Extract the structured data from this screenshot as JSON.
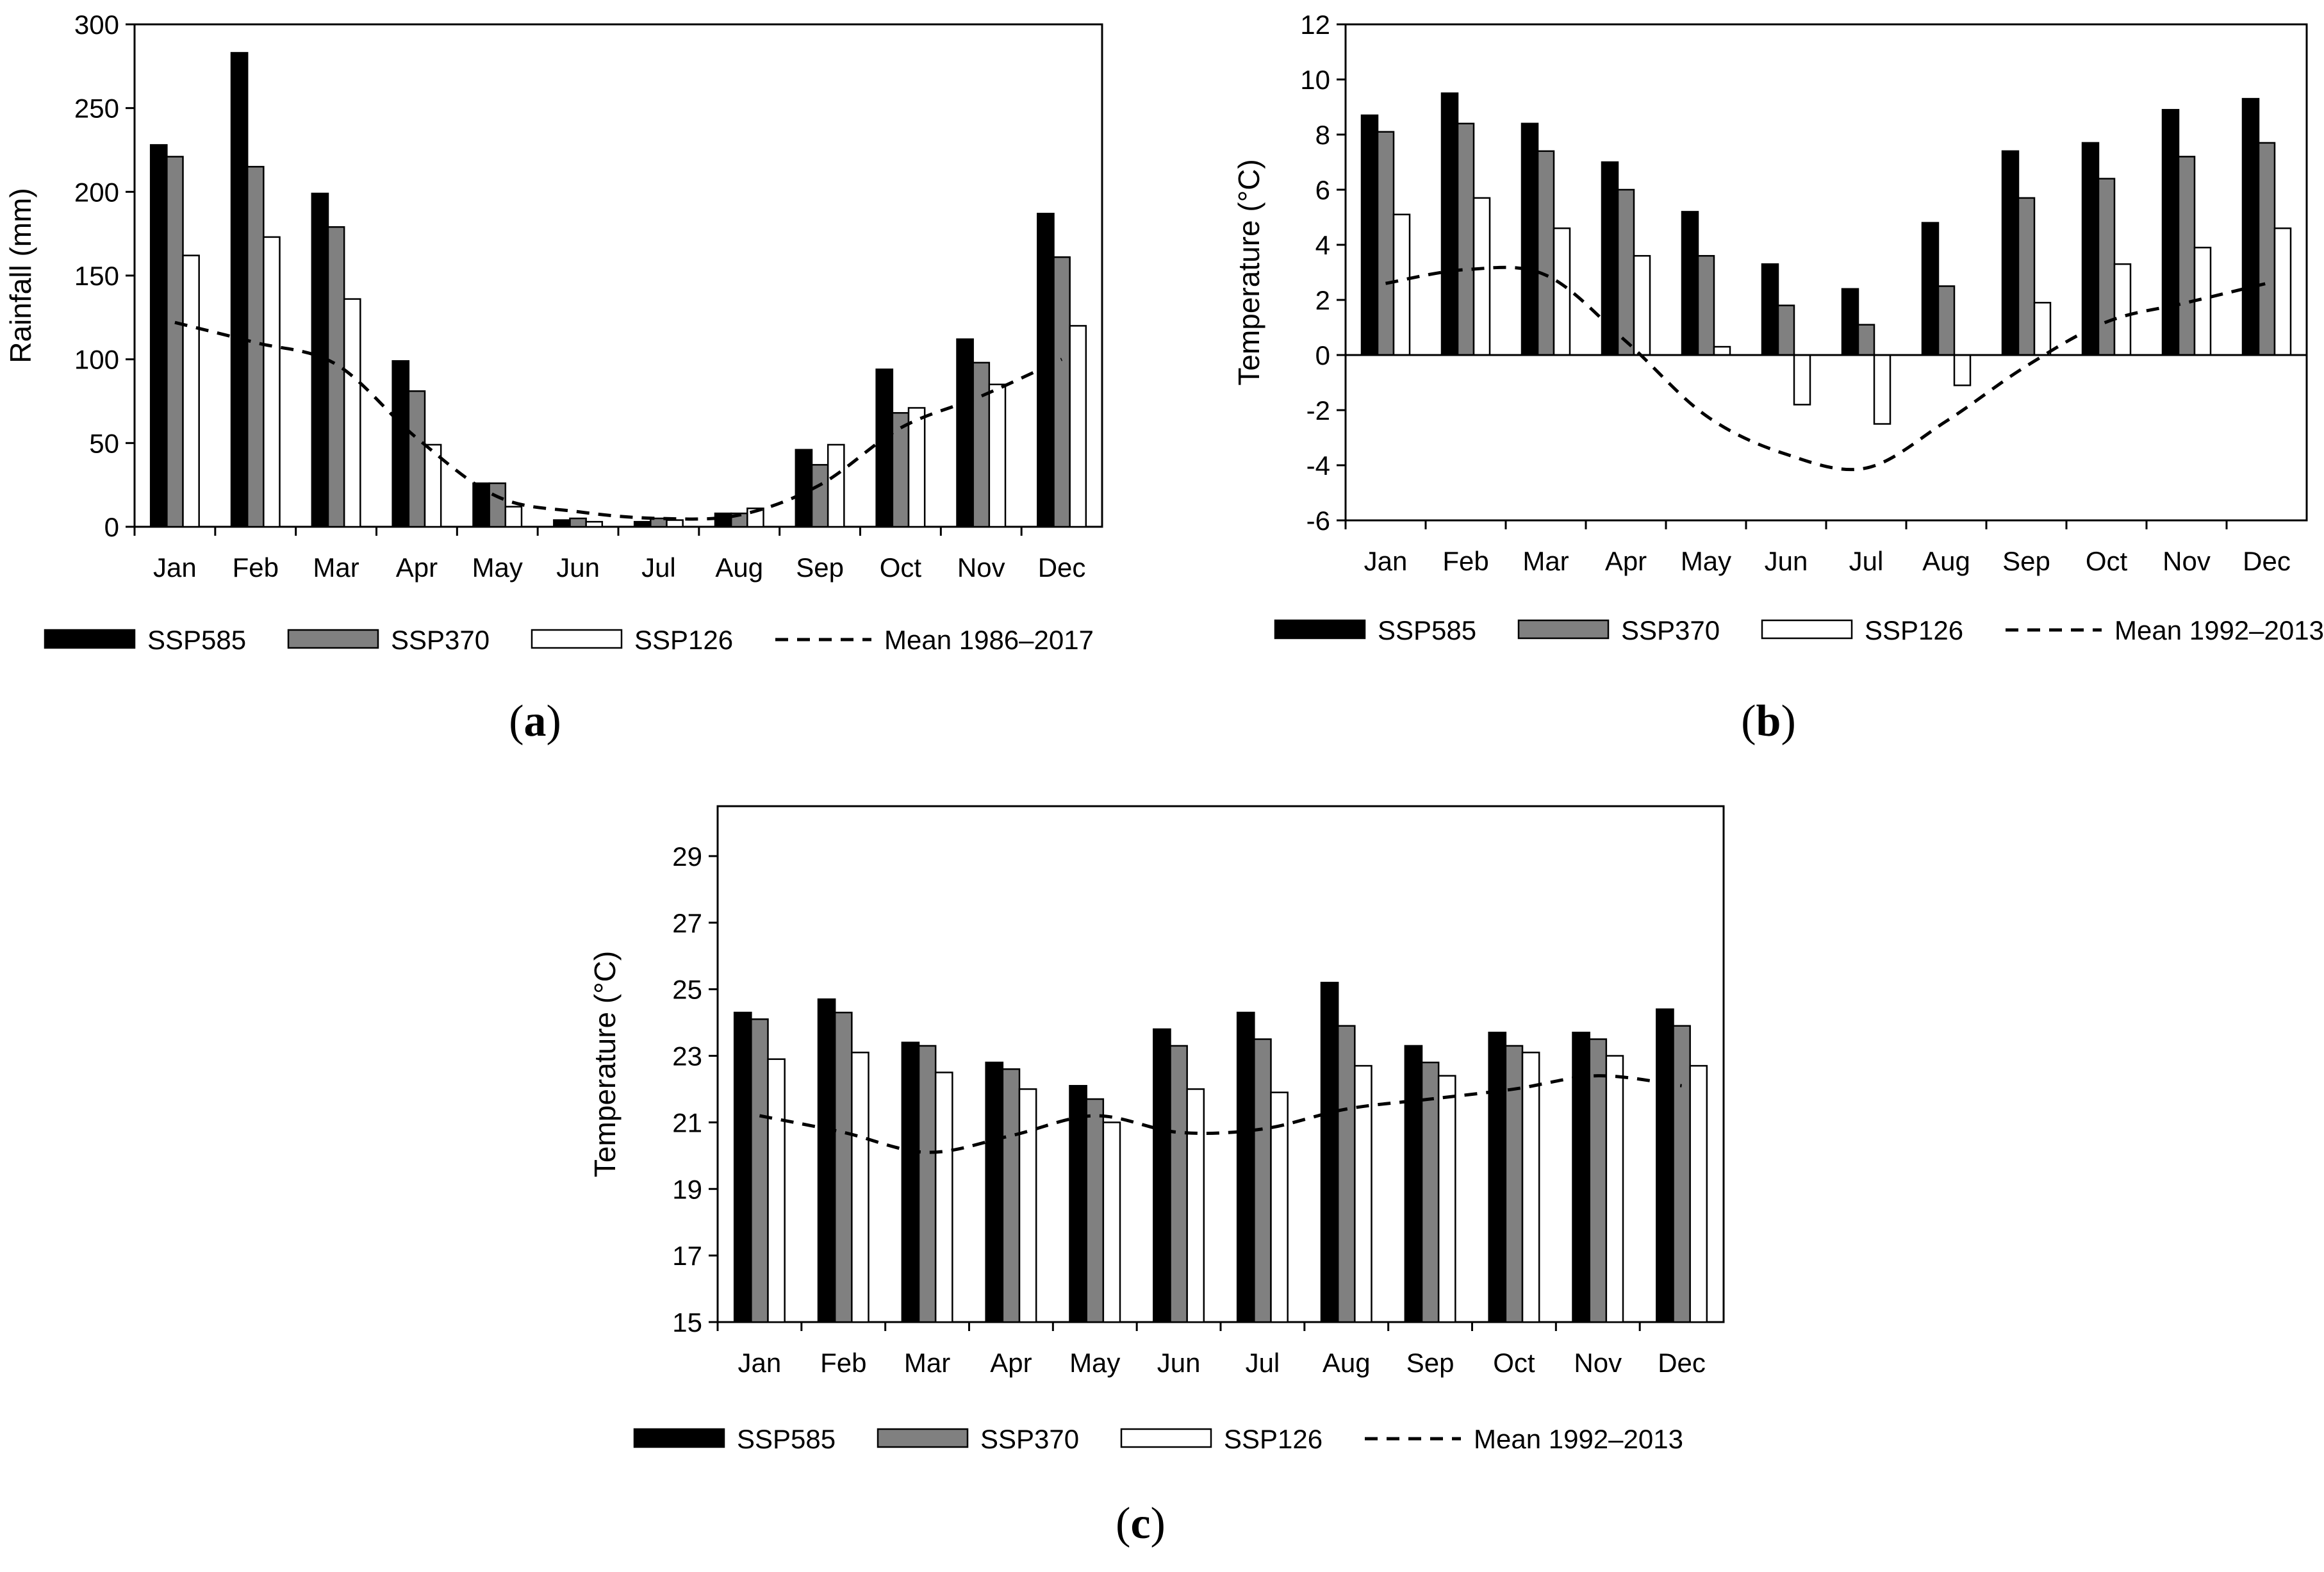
{
  "chart_data": [
    {
      "type": "bar",
      "panel": "a",
      "panel_label": "a",
      "ylabel": "Rainfall (mm)",
      "xlabel": "",
      "ylim": [
        0,
        300
      ],
      "yticks": [
        0,
        50,
        100,
        150,
        200,
        250,
        300
      ],
      "categories": [
        "Jan",
        "Feb",
        "Mar",
        "Apr",
        "May",
        "Jun",
        "Jul",
        "Aug",
        "Sep",
        "Oct",
        "Nov",
        "Dec"
      ],
      "series": [
        {
          "name": "SSP585",
          "kind": "bar",
          "color": "#000000",
          "values": [
            228,
            283,
            199,
            99,
            26,
            4,
            3,
            8,
            46,
            94,
            112,
            187
          ]
        },
        {
          "name": "SSP370",
          "kind": "bar",
          "color": "#808080",
          "values": [
            221,
            215,
            179,
            81,
            26,
            5,
            5,
            8,
            37,
            68,
            98,
            161
          ]
        },
        {
          "name": "SSP126",
          "kind": "bar",
          "color": "#ffffff",
          "values": [
            162,
            173,
            136,
            49,
            12,
            3,
            4,
            11,
            49,
            71,
            85,
            120
          ]
        },
        {
          "name": "Mean 1986–2017",
          "kind": "line",
          "dash": true,
          "values": [
            122,
            110,
            97,
            53,
            18,
            9,
            5,
            7,
            25,
            59,
            78,
            100
          ]
        }
      ],
      "legend": [
        "SSP585",
        "SSP370",
        "SSP126",
        "Mean 1986–2017"
      ]
    },
    {
      "type": "bar",
      "panel": "b",
      "panel_label": "b",
      "ylabel": "Temperature (°C)",
      "xlabel": "",
      "ylim": [
        -6,
        12
      ],
      "yticks": [
        -6,
        -4,
        -2,
        0,
        2,
        4,
        6,
        8,
        10,
        12
      ],
      "categories": [
        "Jan",
        "Feb",
        "Mar",
        "Apr",
        "May",
        "Jun",
        "Jul",
        "Aug",
        "Sep",
        "Oct",
        "Nov",
        "Dec"
      ],
      "series": [
        {
          "name": "SSP585",
          "kind": "bar",
          "color": "#000000",
          "values": [
            8.7,
            9.5,
            8.4,
            7.0,
            5.2,
            3.3,
            2.4,
            4.8,
            7.4,
            7.7,
            8.9,
            9.3
          ]
        },
        {
          "name": "SSP370",
          "kind": "bar",
          "color": "#808080",
          "values": [
            8.1,
            8.4,
            7.4,
            6.0,
            3.6,
            1.8,
            1.1,
            2.5,
            5.7,
            6.4,
            7.2,
            7.7
          ]
        },
        {
          "name": "SSP126",
          "kind": "bar",
          "color": "#ffffff",
          "values": [
            5.1,
            5.7,
            4.6,
            3.6,
            0.3,
            -1.8,
            -2.5,
            -1.1,
            1.9,
            3.3,
            3.9,
            4.6
          ]
        },
        {
          "name": "Mean 1992–2013",
          "kind": "line",
          "dash": true,
          "values": [
            2.6,
            3.1,
            2.9,
            0.5,
            -2.2,
            -3.6,
            -4.1,
            -2.4,
            -0.4,
            1.2,
            1.9,
            2.6
          ]
        }
      ],
      "legend": [
        "SSP585",
        "SSP370",
        "SSP126",
        "Mean 1992–2013"
      ]
    },
    {
      "type": "bar",
      "panel": "c",
      "panel_label": "c",
      "ylabel": "Temperature (°C)",
      "xlabel": "",
      "ylim": [
        15,
        30.5
      ],
      "yticks": [
        15,
        17,
        19,
        21,
        23,
        25,
        27,
        29
      ],
      "categories": [
        "Jan",
        "Feb",
        "Mar",
        "Apr",
        "May",
        "Jun",
        "Jul",
        "Aug",
        "Sep",
        "Oct",
        "Nov",
        "Dec"
      ],
      "series": [
        {
          "name": "SSP585",
          "kind": "bar",
          "color": "#000000",
          "values": [
            24.3,
            24.7,
            23.4,
            22.8,
            22.1,
            23.8,
            24.3,
            25.2,
            23.3,
            23.7,
            23.7,
            24.4
          ]
        },
        {
          "name": "SSP370",
          "kind": "bar",
          "color": "#808080",
          "values": [
            24.1,
            24.3,
            23.3,
            22.6,
            21.7,
            23.3,
            23.5,
            23.9,
            22.8,
            23.3,
            23.5,
            23.9
          ]
        },
        {
          "name": "SSP126",
          "kind": "bar",
          "color": "#ffffff",
          "values": [
            22.9,
            23.1,
            22.5,
            22.0,
            21.0,
            22.0,
            21.9,
            22.7,
            22.4,
            23.1,
            23.0,
            22.7
          ]
        },
        {
          "name": "Mean 1992–2013",
          "kind": "line",
          "dash": true,
          "values": [
            21.2,
            20.7,
            20.1,
            20.6,
            21.2,
            20.7,
            20.8,
            21.4,
            21.7,
            22.0,
            22.4,
            22.1
          ]
        }
      ],
      "legend": [
        "SSP585",
        "SSP370",
        "SSP126",
        "Mean 1992–2013"
      ]
    }
  ]
}
